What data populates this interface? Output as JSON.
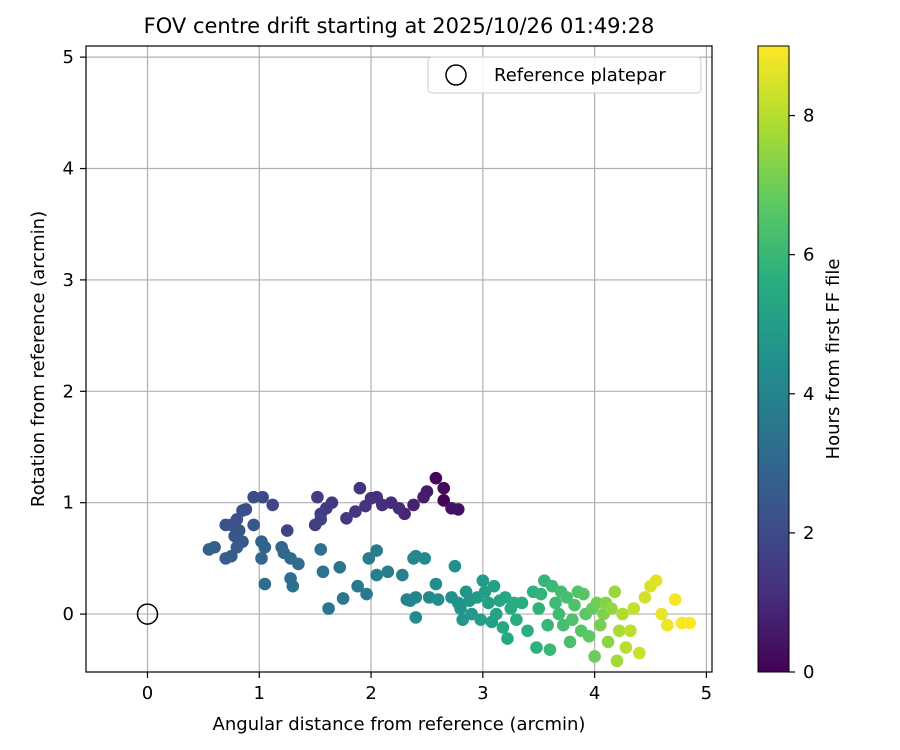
{
  "chart_data": {
    "type": "scatter",
    "title": "FOV centre drift starting at 2025/10/26 01:49:28",
    "xlabel": "Angular distance from reference (arcmin)",
    "ylabel": "Rotation from reference (arcmin)",
    "xlim": [
      -0.55,
      5.05
    ],
    "ylim": [
      -0.52,
      5.1
    ],
    "x_ticks": [
      0,
      1,
      2,
      3,
      4,
      5
    ],
    "y_ticks": [
      0,
      1,
      2,
      3,
      4,
      5
    ],
    "grid": true,
    "legend": {
      "placement": "upper-right",
      "entries": [
        "Reference platepar"
      ]
    },
    "colorbar": {
      "label": "Hours from first FF file",
      "range": [
        0,
        9
      ],
      "ticks": [
        0,
        2,
        4,
        6,
        8
      ],
      "colormap": "viridis"
    },
    "reference_point": {
      "x": 0,
      "y": 0,
      "name": "Reference platepar"
    },
    "series": [
      {
        "points": [
          [
            2.65,
            1.02,
            0.05
          ],
          [
            2.58,
            1.22,
            0.15
          ],
          [
            2.65,
            1.13,
            0.25
          ],
          [
            2.78,
            0.94,
            0.35
          ],
          [
            2.72,
            0.95,
            0.45
          ],
          [
            2.5,
            1.1,
            0.6
          ],
          [
            2.47,
            1.05,
            0.7
          ],
          [
            2.38,
            0.98,
            0.8
          ],
          [
            2.3,
            0.9,
            0.9
          ],
          [
            2.25,
            0.95,
            1.0
          ],
          [
            2.18,
            1.0,
            1.05
          ],
          [
            2.1,
            0.98,
            1.1
          ],
          [
            2.05,
            1.05,
            1.15
          ],
          [
            2.0,
            1.04,
            1.2
          ],
          [
            1.95,
            0.97,
            1.25
          ],
          [
            1.9,
            1.13,
            1.3
          ],
          [
            1.86,
            0.92,
            1.35
          ],
          [
            1.78,
            0.86,
            1.4
          ],
          [
            1.65,
            1.0,
            1.45
          ],
          [
            1.6,
            0.95,
            1.5
          ],
          [
            1.55,
            0.9,
            1.55
          ],
          [
            1.52,
            1.05,
            1.6
          ],
          [
            1.5,
            0.8,
            1.65
          ],
          [
            1.55,
            0.85,
            1.7
          ],
          [
            1.25,
            0.75,
            1.8
          ],
          [
            1.12,
            0.98,
            1.9
          ],
          [
            1.03,
            1.05,
            2.0
          ],
          [
            0.95,
            1.05,
            2.05
          ],
          [
            0.88,
            0.94,
            2.1
          ],
          [
            0.85,
            0.93,
            2.15
          ],
          [
            0.8,
            0.85,
            2.2
          ],
          [
            0.75,
            0.8,
            2.25
          ],
          [
            0.7,
            0.8,
            2.3
          ],
          [
            0.82,
            0.75,
            2.35
          ],
          [
            0.78,
            0.7,
            2.4
          ],
          [
            0.95,
            0.8,
            2.45
          ],
          [
            0.85,
            0.65,
            2.5
          ],
          [
            0.8,
            0.6,
            2.55
          ],
          [
            0.75,
            0.52,
            2.6
          ],
          [
            0.7,
            0.5,
            2.65
          ],
          [
            0.6,
            0.6,
            2.7
          ],
          [
            0.55,
            0.58,
            2.75
          ],
          [
            1.02,
            0.65,
            2.8
          ],
          [
            1.05,
            0.6,
            2.85
          ],
          [
            1.02,
            0.5,
            2.9
          ],
          [
            1.2,
            0.6,
            3.0
          ],
          [
            1.22,
            0.55,
            3.05
          ],
          [
            1.28,
            0.5,
            3.1
          ],
          [
            1.35,
            0.45,
            3.15
          ],
          [
            1.05,
            0.27,
            3.2
          ],
          [
            1.28,
            0.32,
            3.25
          ],
          [
            1.3,
            0.25,
            3.3
          ],
          [
            1.55,
            0.58,
            3.35
          ],
          [
            1.57,
            0.38,
            3.4
          ],
          [
            1.72,
            0.42,
            3.45
          ],
          [
            1.62,
            0.05,
            3.5
          ],
          [
            1.75,
            0.14,
            3.55
          ],
          [
            1.88,
            0.25,
            3.6
          ],
          [
            1.96,
            0.18,
            3.65
          ],
          [
            1.98,
            0.5,
            3.7
          ],
          [
            2.05,
            0.57,
            3.75
          ],
          [
            2.05,
            0.35,
            3.8
          ],
          [
            2.15,
            0.38,
            3.85
          ],
          [
            2.28,
            0.35,
            3.9
          ],
          [
            2.32,
            0.13,
            3.95
          ],
          [
            2.35,
            0.12,
            4.0
          ],
          [
            2.4,
            0.15,
            4.05
          ],
          [
            2.38,
            0.5,
            4.1
          ],
          [
            2.4,
            0.52,
            4.15
          ],
          [
            2.48,
            0.5,
            4.2
          ],
          [
            2.52,
            0.15,
            4.25
          ],
          [
            2.4,
            -0.03,
            4.3
          ],
          [
            2.58,
            0.27,
            4.35
          ],
          [
            2.6,
            0.13,
            4.4
          ],
          [
            2.75,
            0.43,
            4.45
          ],
          [
            2.72,
            0.15,
            4.5
          ],
          [
            2.78,
            0.1,
            4.55
          ],
          [
            2.8,
            0.05,
            4.6
          ],
          [
            2.85,
            0.2,
            4.65
          ],
          [
            2.88,
            0.12,
            4.7
          ],
          [
            2.82,
            -0.05,
            4.75
          ],
          [
            2.9,
            0.0,
            4.8
          ],
          [
            2.95,
            0.15,
            4.85
          ],
          [
            3.0,
            0.3,
            4.9
          ],
          [
            3.02,
            0.2,
            4.95
          ],
          [
            2.98,
            -0.05,
            5.0
          ],
          [
            3.05,
            0.1,
            5.05
          ],
          [
            3.08,
            -0.07,
            5.1
          ],
          [
            3.1,
            0.25,
            5.15
          ],
          [
            3.12,
            0.0,
            5.2
          ],
          [
            3.15,
            0.12,
            5.25
          ],
          [
            3.18,
            -0.12,
            5.3
          ],
          [
            3.2,
            0.15,
            5.35
          ],
          [
            3.22,
            -0.22,
            5.4
          ],
          [
            3.25,
            0.05,
            5.45
          ],
          [
            3.28,
            0.1,
            5.5
          ],
          [
            3.3,
            -0.05,
            5.55
          ],
          [
            3.35,
            0.1,
            5.6
          ],
          [
            3.4,
            -0.15,
            5.65
          ],
          [
            3.45,
            0.2,
            5.7
          ],
          [
            3.48,
            -0.3,
            5.75
          ],
          [
            3.5,
            0.05,
            5.8
          ],
          [
            3.52,
            0.18,
            5.85
          ],
          [
            3.55,
            0.3,
            5.9
          ],
          [
            3.58,
            -0.1,
            5.95
          ],
          [
            3.6,
            -0.32,
            6.0
          ],
          [
            3.62,
            0.25,
            6.05
          ],
          [
            3.65,
            0.1,
            6.1
          ],
          [
            3.68,
            0.0,
            6.15
          ],
          [
            3.7,
            0.2,
            6.2
          ],
          [
            3.72,
            -0.1,
            6.25
          ],
          [
            3.75,
            0.15,
            6.3
          ],
          [
            3.78,
            -0.25,
            6.35
          ],
          [
            3.8,
            -0.05,
            6.4
          ],
          [
            3.82,
            0.08,
            6.45
          ],
          [
            3.85,
            0.2,
            6.5
          ],
          [
            3.88,
            -0.15,
            6.55
          ],
          [
            3.9,
            0.18,
            6.6
          ],
          [
            3.92,
            0.0,
            6.65
          ],
          [
            3.95,
            -0.2,
            6.7
          ],
          [
            3.98,
            0.05,
            6.8
          ],
          [
            4.0,
            -0.38,
            6.9
          ],
          [
            4.02,
            0.1,
            7.0
          ],
          [
            4.05,
            -0.1,
            7.1
          ],
          [
            4.08,
            0.0,
            7.2
          ],
          [
            4.1,
            0.1,
            7.3
          ],
          [
            4.12,
            -0.25,
            7.4
          ],
          [
            4.15,
            0.05,
            7.5
          ],
          [
            4.18,
            0.2,
            7.6
          ],
          [
            4.2,
            -0.42,
            7.7
          ],
          [
            4.22,
            -0.15,
            7.8
          ],
          [
            4.25,
            0.0,
            7.9
          ],
          [
            4.28,
            -0.3,
            8.0
          ],
          [
            4.32,
            -0.15,
            8.1
          ],
          [
            4.35,
            0.05,
            8.2
          ],
          [
            4.4,
            -0.35,
            8.3
          ],
          [
            4.45,
            0.15,
            8.4
          ],
          [
            4.5,
            0.25,
            8.5
          ],
          [
            4.55,
            0.3,
            8.6
          ],
          [
            4.6,
            0.0,
            8.7
          ],
          [
            4.65,
            -0.1,
            8.8
          ],
          [
            4.72,
            0.13,
            8.9
          ],
          [
            4.78,
            -0.08,
            8.95
          ],
          [
            4.85,
            -0.08,
            9.0
          ]
        ]
      }
    ]
  }
}
